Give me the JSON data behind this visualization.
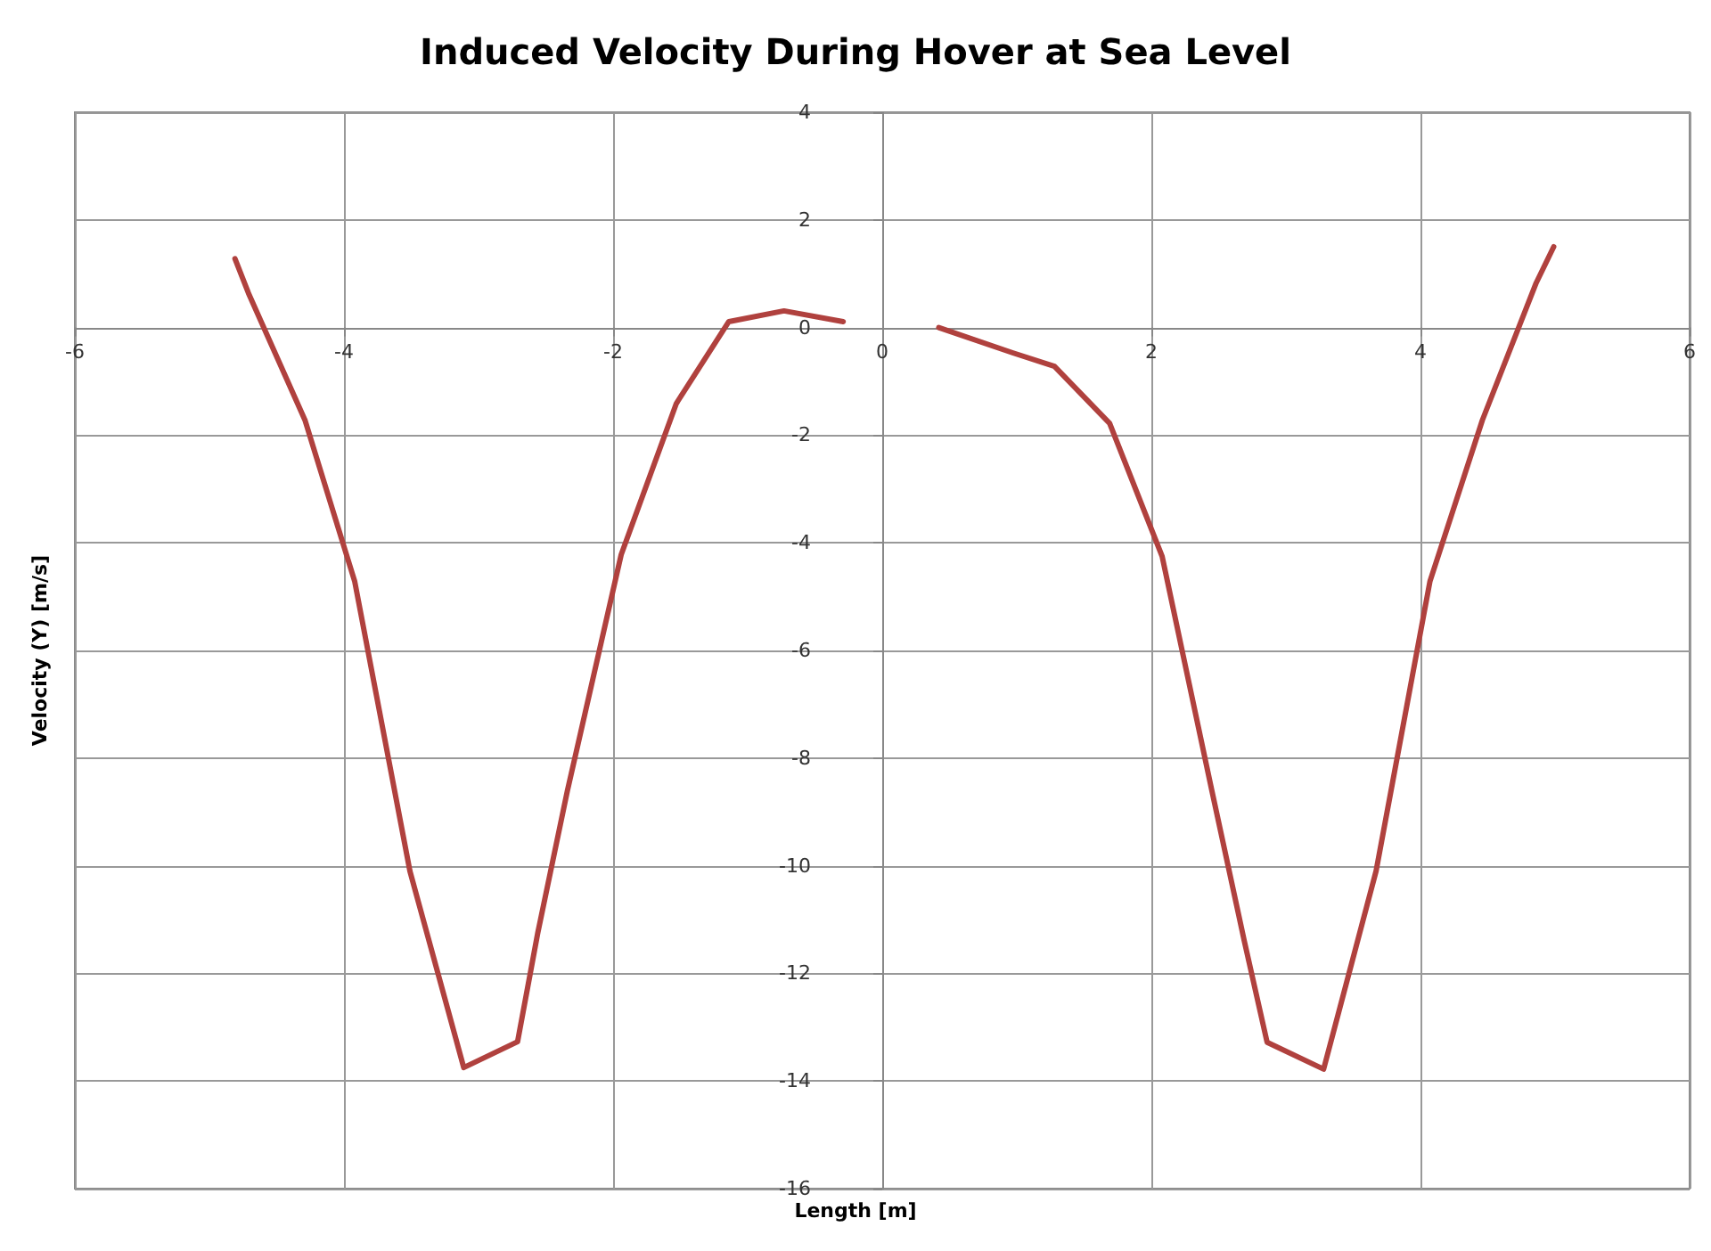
{
  "chart_data": {
    "type": "line",
    "title": "Induced Velocity During Hover at Sea Level",
    "xlabel": "Length [m]",
    "ylabel": "Velocity (Y) [m/s]",
    "x": [
      -4.81,
      -4.71,
      -4.29,
      -3.92,
      -3.51,
      -3.11,
      -2.71,
      -2.56,
      -2.34,
      -1.94,
      -1.53,
      -1.14,
      -0.73,
      -0.29,
      0,
      0.42,
      0.97,
      1.28,
      1.69,
      2.08,
      2.45,
      2.69,
      2.86,
      3.28,
      3.67,
      4.07,
      4.46,
      4.86,
      4.99
    ],
    "series": [
      {
        "color": "#b0413e",
        "values": [
          1.28,
          0.64,
          -1.72,
          -4.72,
          -10.1,
          -13.75,
          -13.27,
          -11.25,
          -8.61,
          -4.22,
          -1.41,
          0.11,
          0.31,
          0.11,
          null,
          0.0,
          -0.47,
          -0.72,
          -1.78,
          -4.25,
          -8.61,
          -11.39,
          -13.28,
          -13.78,
          -10.1,
          -4.72,
          -1.72,
          0.83,
          1.5
        ]
      }
    ],
    "xlim": [
      -6,
      6
    ],
    "xticks": [
      -6,
      -4,
      -2,
      0,
      2,
      4,
      6
    ],
    "ylim": [
      -16,
      4
    ],
    "yticks": [
      -16,
      -14,
      -12,
      -10,
      -8,
      -6,
      -4,
      -2,
      0,
      2,
      4
    ],
    "grid": true,
    "marker": "none",
    "line_style": "solid"
  }
}
